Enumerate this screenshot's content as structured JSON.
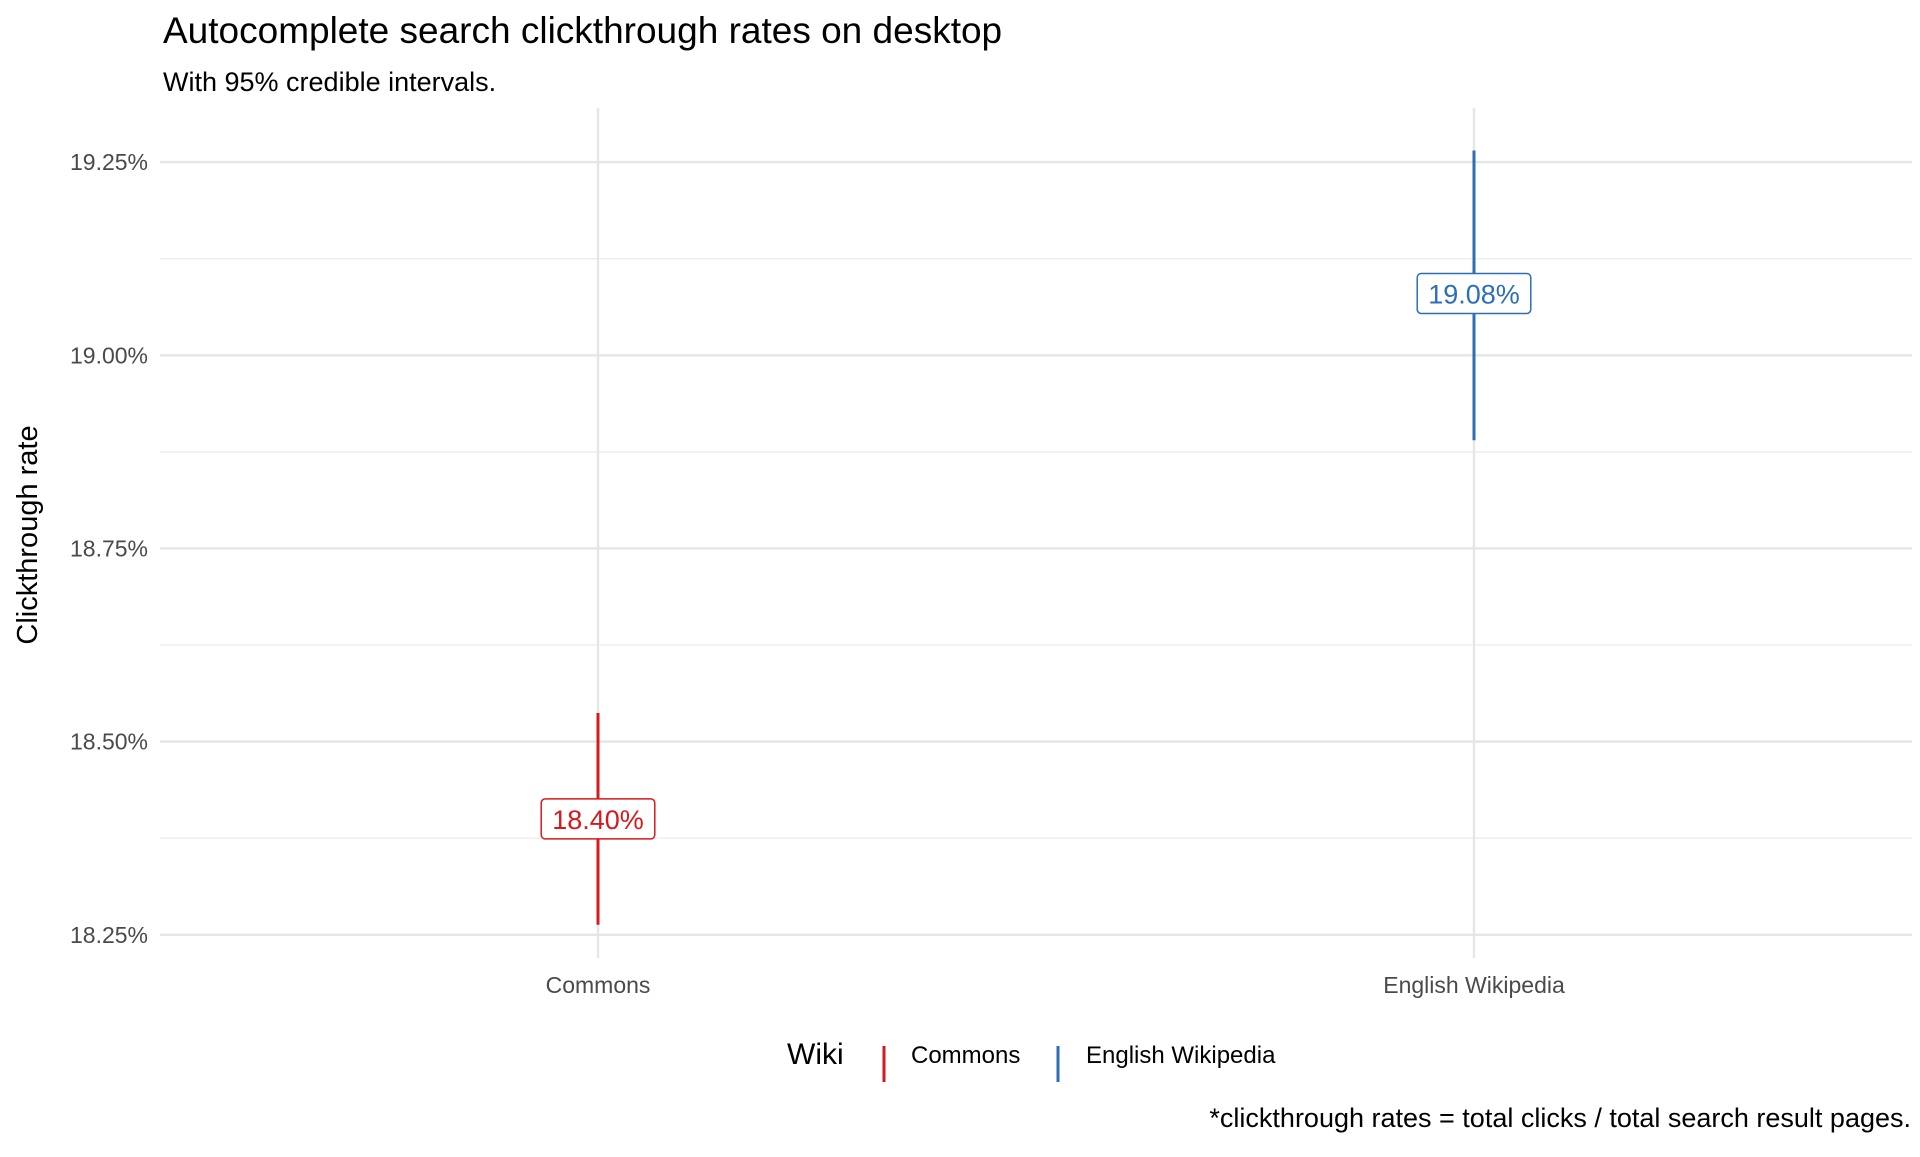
{
  "chart_data": {
    "type": "errorbar",
    "title": "Autocomplete search clickthrough rates on desktop",
    "subtitle": "With 95% credible intervals.",
    "xlabel": "",
    "ylabel": "Clickthrough rate",
    "caption": "*clickthrough rates = total clicks / total search result pages.",
    "categories": [
      "Commons",
      "English Wikipedia"
    ],
    "ylim": [
      0.1822,
      0.1932
    ],
    "yticks": [
      0.1825,
      0.185,
      0.1875,
      0.19,
      0.1925
    ],
    "ytick_labels": [
      "18.25%",
      "18.50%",
      "18.75%",
      "19.00%",
      "19.25%"
    ],
    "grid": true,
    "series": [
      {
        "name": "Commons",
        "category": "Commons",
        "estimate": 0.184,
        "lower": 0.18263,
        "upper": 0.18537,
        "label": "18.40%",
        "color": "#d7191c"
      },
      {
        "name": "English Wikipedia",
        "category": "English Wikipedia",
        "estimate": 0.1908,
        "lower": 0.1889,
        "upper": 0.19265,
        "label": "19.08%",
        "color": "#2c6fb7"
      }
    ],
    "legend": {
      "title": "Wiki",
      "position": "bottom",
      "entries": [
        "Commons",
        "English Wikipedia"
      ]
    }
  }
}
